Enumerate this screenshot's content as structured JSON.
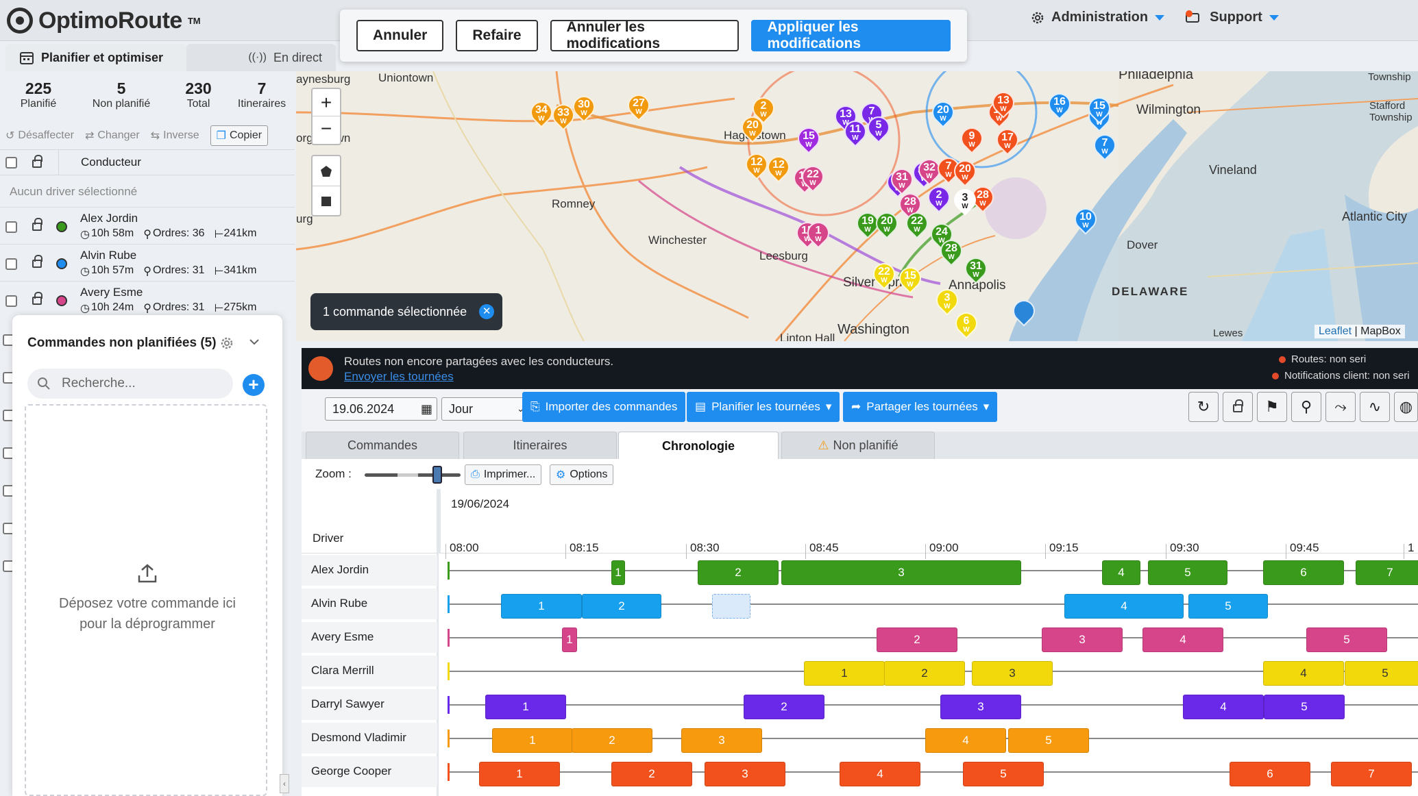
{
  "app": {
    "name": "OptimoRoute",
    "tm": "TM"
  },
  "edit_bar": {
    "undo": "Annuler",
    "redo": "Refaire",
    "cancel_changes": "Annuler les modifications",
    "apply_changes": "Appliquer les modifications"
  },
  "top_menu": {
    "admin": "Administration",
    "support": "Support"
  },
  "left_tabs": {
    "plan": "Planifier et optimiser",
    "live": "En direct"
  },
  "stats": [
    {
      "value": "225",
      "label": "Planifié"
    },
    {
      "value": "5",
      "label": "Non planifié"
    },
    {
      "value": "230",
      "label": "Total"
    },
    {
      "value": "7",
      "label": "Itineraires"
    }
  ],
  "actions": {
    "unassign": "Désaffecter",
    "change": "Changer",
    "reverse": "Inverse",
    "copy": "Copier"
  },
  "driver_header": "Conducteur",
  "no_driver": "Aucun driver sélectionné",
  "drivers": [
    {
      "name": "Alex Jordin",
      "time": "10h 58m",
      "orders": "Ordres: 36",
      "distance": "241km",
      "color": "#3a9a1c"
    },
    {
      "name": "Alvin Rube",
      "time": "10h 57m",
      "orders": "Ordres: 31",
      "distance": "341km",
      "color": "#1f8cf0"
    },
    {
      "name": "Avery Esme",
      "time": "10h 24m",
      "orders": "Ordres: 31",
      "distance": "275km",
      "color": "#d6448a"
    }
  ],
  "unplanned": {
    "title": "Commandes non planifiées (5)",
    "search_placeholder": "Recherche...",
    "drop_line1": "Déposez votre commande ici",
    "drop_line2": "pour la déprogrammer"
  },
  "map": {
    "selected_badge": "1 commande sélectionnée",
    "attribution_leaflet": "Leaflet",
    "attribution_sep": "|",
    "attribution_mapbox": "MapBox",
    "places": [
      "aynesburg",
      "Uniontown",
      "organtown",
      "Hagerstown",
      "Romney",
      "Winchester",
      "Leesburg",
      "Washington",
      "Linton Hall",
      "Philadelphia",
      "Wilmington",
      "Vineland",
      "Atlantic City",
      "Dover",
      "DELAWARE",
      "Lewes",
      "Township",
      "Stafford Township",
      "Silver Spring",
      "Annapolis",
      "urg"
    ],
    "pin_labels": [
      "34",
      "33",
      "30",
      "27",
      "20",
      "2",
      "15",
      "13",
      "7",
      "11",
      "5",
      "20",
      "9",
      "10",
      "13",
      "17",
      "16",
      "12",
      "15",
      "7",
      "10",
      "12",
      "33",
      "34",
      "31",
      "32",
      "28",
      "7",
      "20",
      "28",
      "2",
      "3",
      "17",
      "22",
      "19",
      "20",
      "22",
      "24",
      "28",
      "31",
      "12",
      "15",
      "22",
      "15",
      "3",
      "6",
      "1"
    ]
  },
  "notice": {
    "text": "Routes non encore partagées avec les conducteurs.",
    "link": "Envoyer les tournées",
    "right1": "Routes: non seri",
    "right2": "Notifications client: non seri"
  },
  "toolbar": {
    "date": "19.06.2024",
    "period": "Jour",
    "import": "Importer des commandes",
    "plan": "Planifier les tournées",
    "share": "Partager les tournées"
  },
  "view_tabs": [
    "Commandes",
    "Itineraires",
    "Chronologie",
    "Non planifié"
  ],
  "timeline": {
    "zoom_label": "Zoom :",
    "print": "Imprimer...",
    "options": "Options",
    "date": "19/06/2024",
    "driver_col": "Driver",
    "ticks": [
      "08:00",
      "08:15",
      "08:30",
      "08:45",
      "09:00",
      "09:15",
      "09:30",
      "09:45",
      "1"
    ],
    "rows": [
      {
        "name": "Alex Jordin",
        "color": "#3a9a1c",
        "blocks": [
          "1",
          "2",
          "3",
          "4",
          "5",
          "6",
          "7"
        ]
      },
      {
        "name": "Alvin Rube",
        "color": "#16a0ee",
        "blocks": [
          "1",
          "2",
          "4",
          "5"
        ]
      },
      {
        "name": "Avery Esme",
        "color": "#d6448a",
        "blocks": [
          "1",
          "2",
          "3",
          "4",
          "5"
        ]
      },
      {
        "name": "Clara Merrill",
        "color": "#f2d90c",
        "blocks": [
          "1",
          "2",
          "3",
          "4",
          "5"
        ]
      },
      {
        "name": "Darryl Sawyer",
        "color": "#6a28e8",
        "blocks": [
          "1",
          "2",
          "3",
          "4",
          "5"
        ]
      },
      {
        "name": "Desmond Vladimir",
        "color": "#f79a0e",
        "blocks": [
          "1",
          "2",
          "3",
          "4",
          "5"
        ]
      },
      {
        "name": "George Cooper",
        "color": "#f2501c",
        "blocks": [
          "1",
          "2",
          "3",
          "4",
          "5",
          "6",
          "7"
        ]
      }
    ]
  }
}
